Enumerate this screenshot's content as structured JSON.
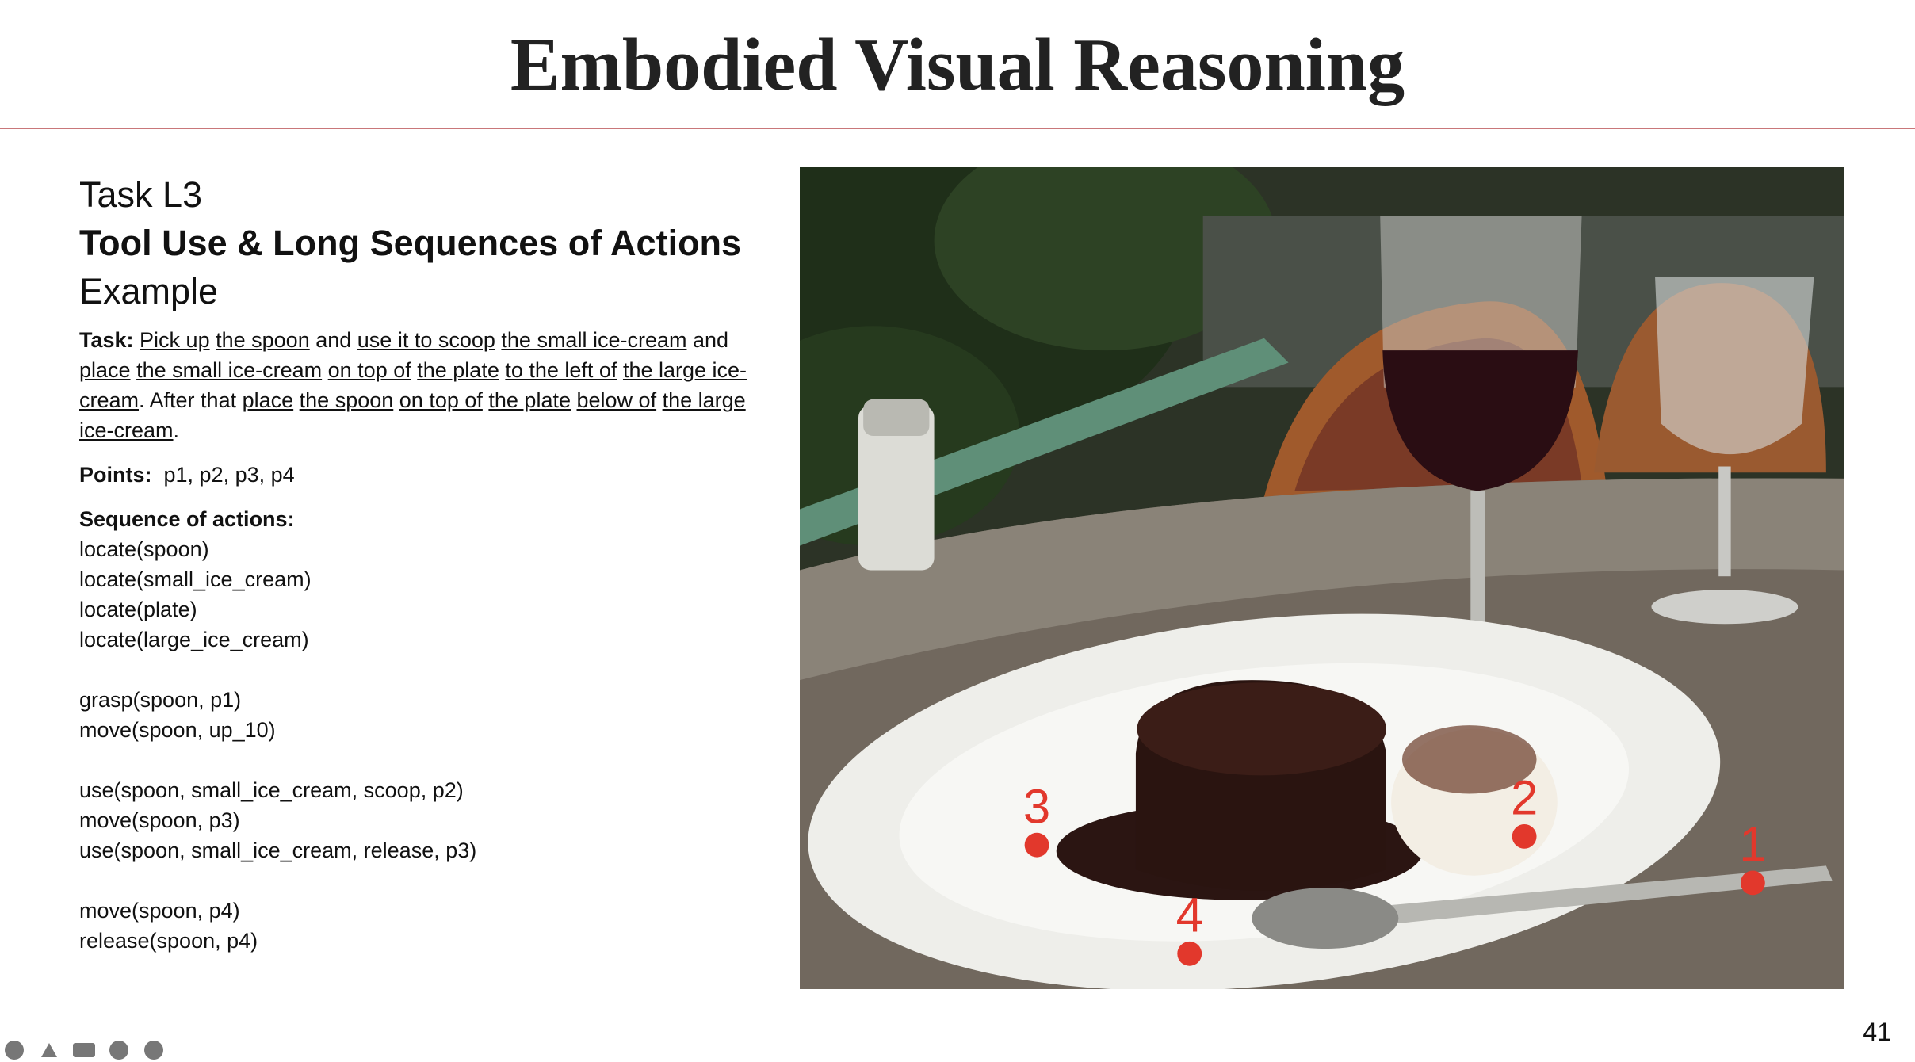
{
  "title": "Embodied Visual Reasoning",
  "task_id": "Task L3",
  "subtitle": "Tool Use & Long Sequences of Actions",
  "example": "Example",
  "task": {
    "segments": [
      {
        "text": "Task:",
        "bold": true
      },
      {
        "text": " "
      },
      {
        "text": "Pick up",
        "underline": true
      },
      {
        "text": " "
      },
      {
        "text": "the spoon",
        "underline": true
      },
      {
        "text": " and "
      },
      {
        "text": "use it to scoop",
        "underline": true
      },
      {
        "text": " "
      },
      {
        "text": "the small ice-cream",
        "underline": true
      },
      {
        "text": " and "
      },
      {
        "text": "place",
        "underline": true
      },
      {
        "text": " "
      },
      {
        "text": "the small ice-cream",
        "underline": true
      },
      {
        "text": " "
      },
      {
        "text": "on top of",
        "underline": true
      },
      {
        "text": " "
      },
      {
        "text": "the plate",
        "underline": true
      },
      {
        "text": " "
      },
      {
        "text": "to the left of",
        "underline": true
      },
      {
        "text": " "
      },
      {
        "text": "the large ice-cream",
        "underline": true
      },
      {
        "text": ". After that "
      },
      {
        "text": "place",
        "underline": true
      },
      {
        "text": " "
      },
      {
        "text": "the spoon",
        "underline": true
      },
      {
        "text": " "
      },
      {
        "text": "on top of",
        "underline": true
      },
      {
        "text": " "
      },
      {
        "text": "the plate",
        "underline": true
      },
      {
        "text": " "
      },
      {
        "text": "below of",
        "underline": true
      },
      {
        "text": " "
      },
      {
        "text": "the large ice-cream",
        "underline": true
      },
      {
        "text": "."
      }
    ]
  },
  "points": {
    "label": "Points:",
    "text": "p1, p2, p3, p4"
  },
  "sequence": {
    "label": "Sequence of actions:",
    "groups": [
      [
        "locate(spoon)",
        "locate(small_ice_cream)",
        "locate(plate)",
        "locate(large_ice_cream)"
      ],
      [
        "grasp(spoon, p1)",
        "move(spoon, up_10)"
      ],
      [
        "use(spoon, small_ice_cream, scoop, p2)",
        "move(spoon, p3)",
        "use(spoon, small_ice_cream, release, p3)"
      ],
      [
        "move(spoon, p4)",
        "release(spoon, p4)"
      ]
    ]
  },
  "image": {
    "points": [
      "1",
      "2",
      "3",
      "4"
    ]
  },
  "page_number": "41"
}
